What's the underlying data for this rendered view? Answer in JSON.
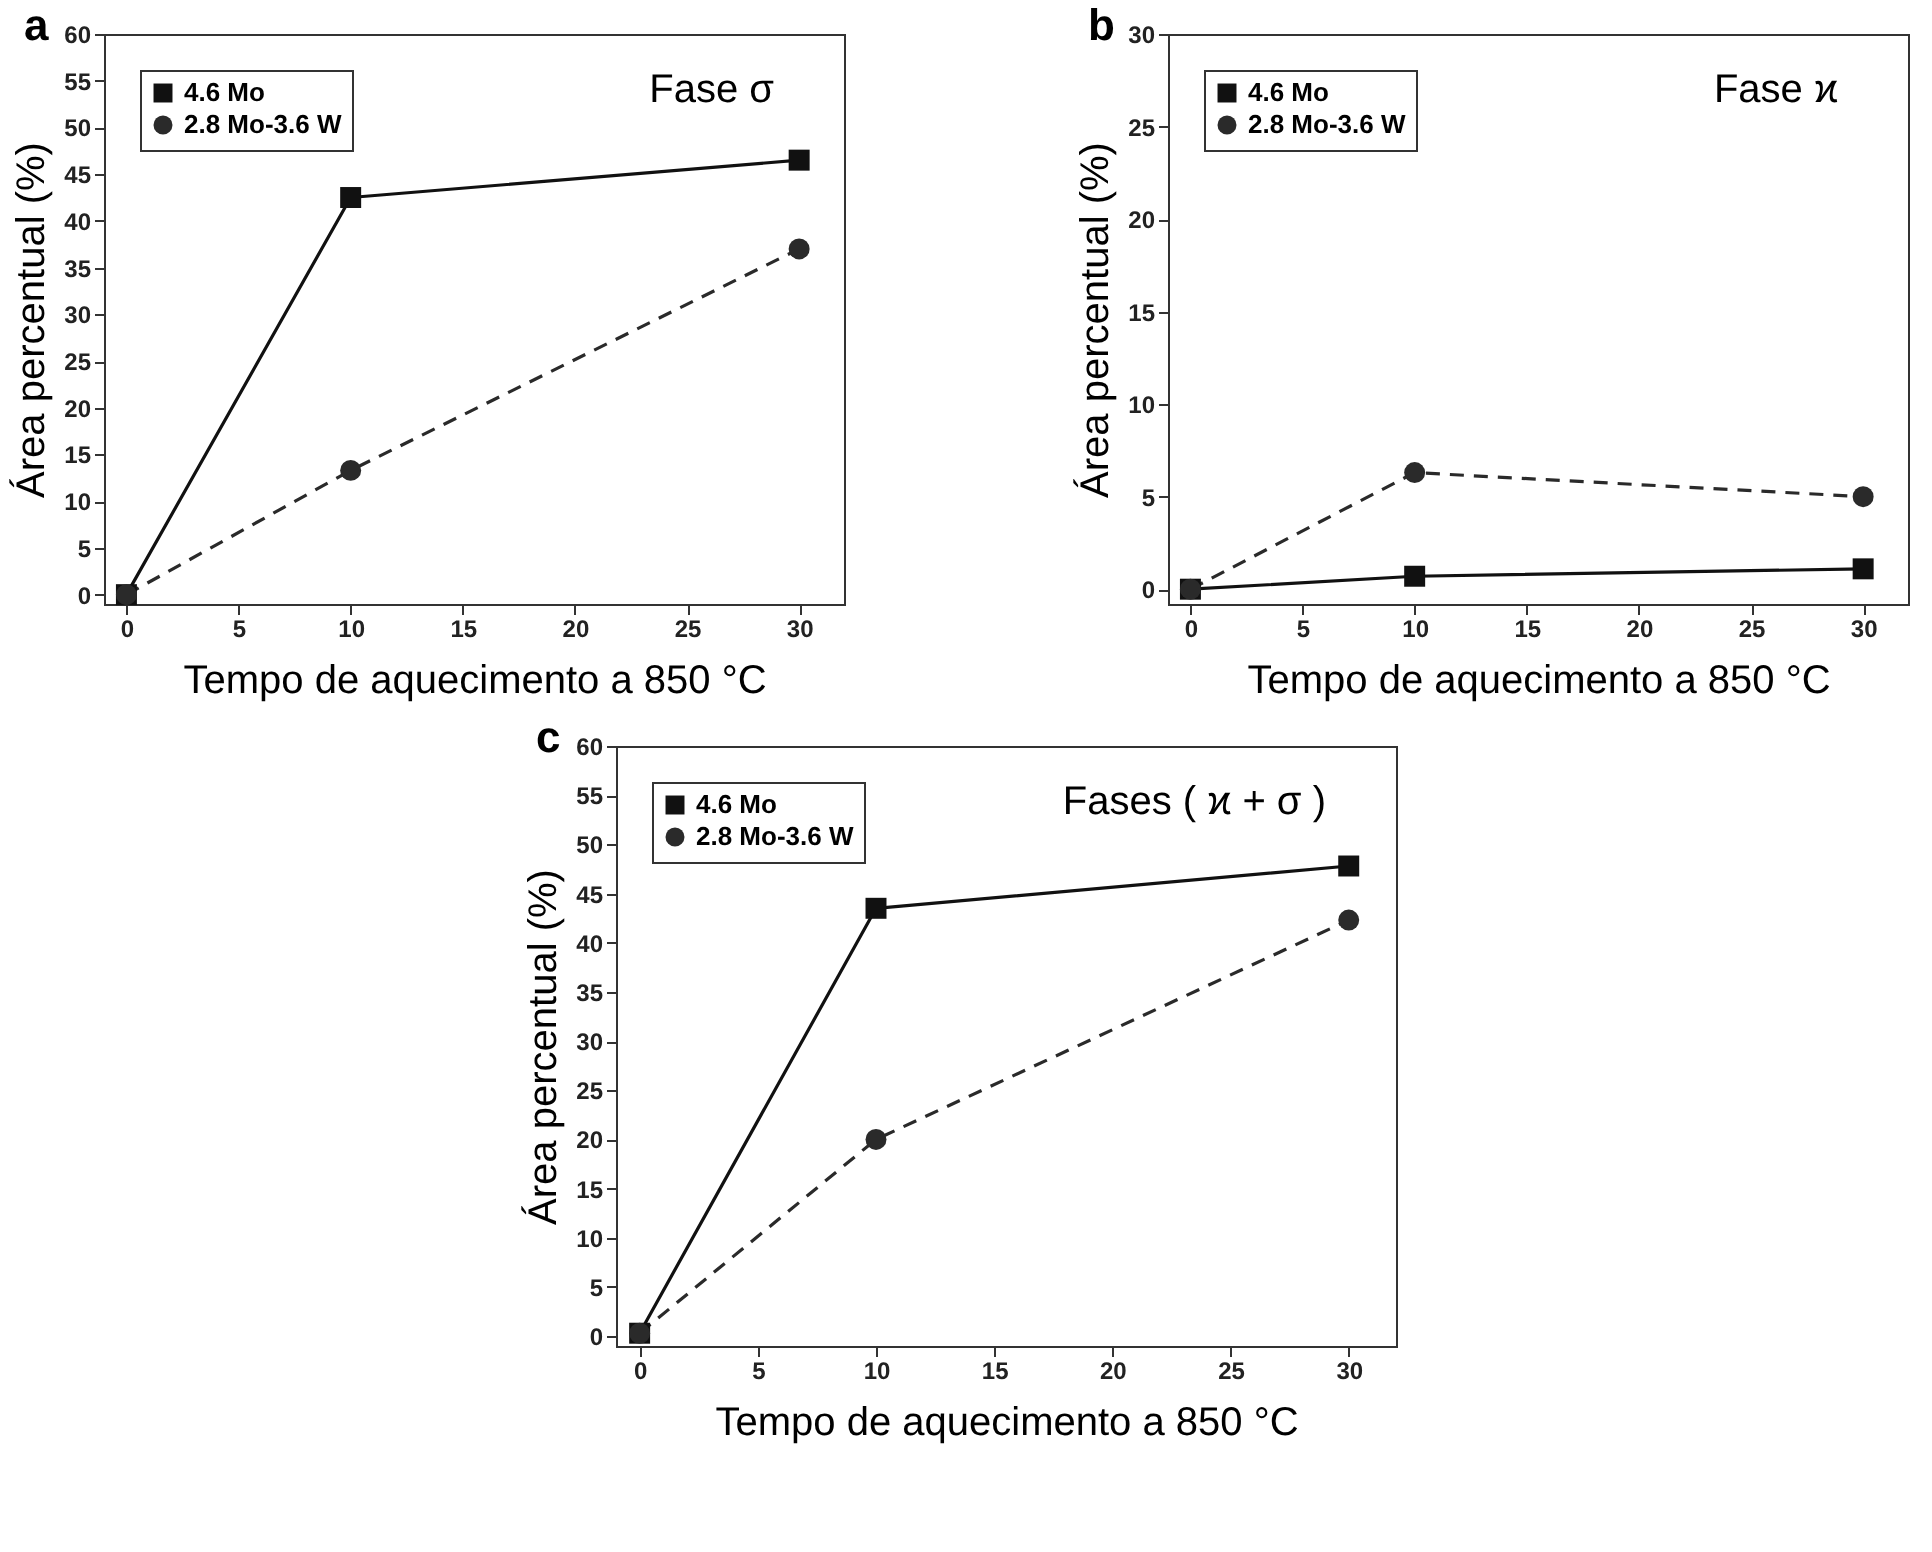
{
  "chart_data": [
    {
      "type": "line",
      "title": "a",
      "xlabel": "Tempo de aquecimento a 850 °C",
      "ylabel": "Área percentual (%)",
      "annotations": [
        "Fase σ"
      ],
      "x": [
        0,
        10,
        30
      ],
      "xlim": [
        -1,
        32
      ],
      "xticks": [
        0,
        5,
        10,
        15,
        20,
        25,
        30
      ],
      "ylim": [
        -1,
        60
      ],
      "yticks": [
        0,
        5,
        10,
        15,
        20,
        25,
        30,
        35,
        40,
        45,
        50,
        55,
        60
      ],
      "grid": false,
      "legend": "top left",
      "series": [
        {
          "name": "4.6 Mo",
          "color": "#111111",
          "marker": "square",
          "line_style": "solid",
          "values": [
            0,
            42.5,
            46.5
          ]
        },
        {
          "name": "2.8 Mo-3.6 W",
          "color": "#2a2a2a",
          "marker": "circle",
          "line_style": "dashed",
          "values": [
            0,
            13.3,
            37
          ]
        }
      ]
    },
    {
      "type": "line",
      "title": "b",
      "xlabel": "Tempo de aquecimento a 850 °C",
      "ylabel": "Área percentual (%)",
      "annotations": [
        "Fase ϰ"
      ],
      "x": [
        0,
        10,
        30
      ],
      "xlim": [
        -1,
        32
      ],
      "xticks": [
        0,
        5,
        10,
        15,
        20,
        25,
        30
      ],
      "ylim": [
        -0.8,
        30
      ],
      "yticks": [
        0,
        5,
        10,
        15,
        20,
        25,
        30
      ],
      "grid": false,
      "legend": "top left",
      "series": [
        {
          "name": "4.6 Mo",
          "color": "#111111",
          "marker": "square",
          "line_style": "solid",
          "values": [
            0,
            0.7,
            1.1
          ]
        },
        {
          "name": "2.8 Mo-3.6 W",
          "color": "#2a2a2a",
          "marker": "circle",
          "line_style": "dashed",
          "values": [
            0,
            6.3,
            5.0
          ]
        }
      ]
    },
    {
      "type": "line",
      "title": "c",
      "xlabel": "Tempo de aquecimento a 850 °C",
      "ylabel": "Área percentual (%)",
      "annotations": [
        "Fases ( ϰ + σ )"
      ],
      "x": [
        0,
        10,
        30
      ],
      "xlim": [
        -1,
        32
      ],
      "xticks": [
        0,
        5,
        10,
        15,
        20,
        25,
        30
      ],
      "ylim": [
        -1,
        60
      ],
      "yticks": [
        0,
        5,
        10,
        15,
        20,
        25,
        30,
        35,
        40,
        45,
        50,
        55,
        60
      ],
      "grid": false,
      "legend": "top left",
      "series": [
        {
          "name": "4.6 Mo",
          "color": "#111111",
          "marker": "square",
          "line_style": "solid",
          "values": [
            0.3,
            43.5,
            47.8
          ]
        },
        {
          "name": "2.8 Mo-3.6 W",
          "color": "#2a2a2a",
          "marker": "circle",
          "line_style": "dashed",
          "values": [
            0.3,
            20,
            42.3
          ]
        }
      ]
    }
  ]
}
